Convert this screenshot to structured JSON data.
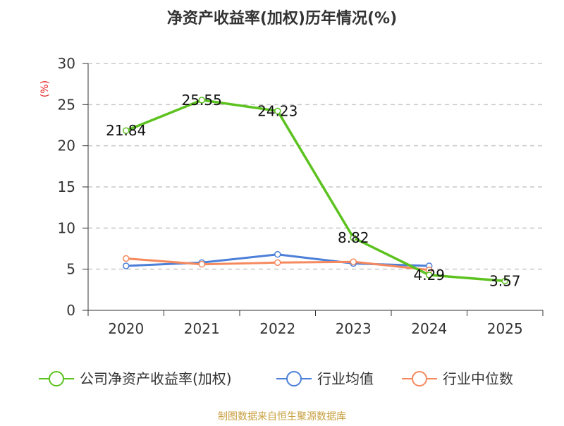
{
  "chart_data": {
    "type": "line",
    "title": "净资产收益率(加权)历年情况(%)",
    "xlabel": "",
    "ylabel": "(%)",
    "categories": [
      "2020",
      "2021",
      "2022",
      "2023",
      "2024",
      "2025"
    ],
    "ylim": [
      0,
      30
    ],
    "yticks": [
      0,
      5,
      10,
      15,
      20,
      25,
      30
    ],
    "grid": true,
    "legend_position": "bottom",
    "series": [
      {
        "name": "公司净资产收益率(加权)",
        "color": "#5cc21f",
        "values": [
          21.84,
          25.55,
          24.23,
          8.82,
          4.29,
          3.57
        ],
        "labels": [
          "21.84",
          "25.55",
          "24.23",
          "8.82",
          "4.29",
          "3.57"
        ]
      },
      {
        "name": "行业均值",
        "color": "#4c7fd8",
        "values": [
          5.4,
          5.8,
          6.8,
          5.7,
          5.4,
          null
        ]
      },
      {
        "name": "行业中位数",
        "color": "#f5895e",
        "values": [
          6.3,
          5.6,
          5.8,
          5.9,
          4.9,
          null
        ]
      }
    ]
  },
  "source_text": "制图数据来自恒生聚源数据库",
  "colors": {
    "ylabel": "#e02020",
    "source": "#c8a040",
    "grid": "#c8c8c8",
    "axis": "#333333"
  }
}
